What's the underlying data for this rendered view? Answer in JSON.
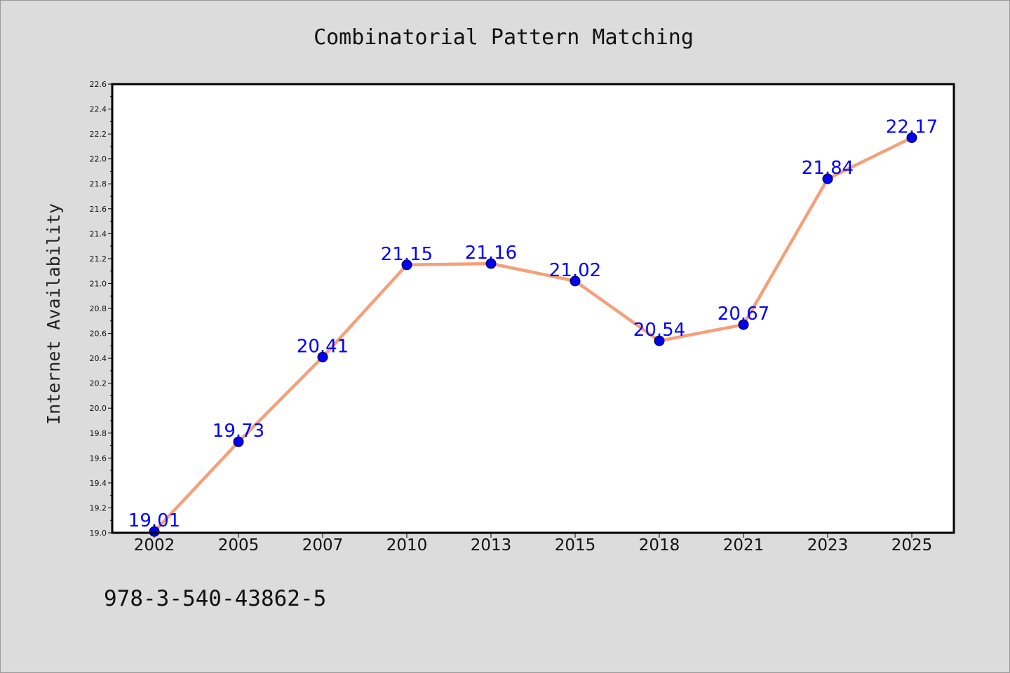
{
  "chart_data": {
    "type": "line",
    "title": "Combinatorial Pattern Matching",
    "xlabel": "",
    "ylabel": "Internet Availability",
    "categories": [
      "2002",
      "2005",
      "2007",
      "2010",
      "2013",
      "2015",
      "2018",
      "2021",
      "2023",
      "2025"
    ],
    "series": [
      {
        "values": [
          19.01,
          19.73,
          20.41,
          21.15,
          21.16,
          21.02,
          20.54,
          20.67,
          21.84,
          22.17
        ],
        "data_labels": [
          "19.01",
          "19.73",
          "20.41",
          "21.15",
          "21.16",
          "21.02",
          "20.54",
          "20.67",
          "21.84",
          "22.17"
        ]
      }
    ],
    "ylim": [
      19.0,
      22.6
    ],
    "yticks": [
      "19.0",
      "19.2",
      "19.4",
      "19.6",
      "19.8",
      "20.0",
      "20.2",
      "20.4",
      "20.6",
      "20.8",
      "21.0",
      "21.2",
      "21.4",
      "21.6",
      "21.8",
      "22.0",
      "22.2",
      "22.4",
      "22.6"
    ],
    "grid": false,
    "legend": "none",
    "colors": {
      "line": "#f4a07a",
      "marker": "#0000ee",
      "data_label": "#0000ff",
      "plot_bg": "#ffffff",
      "page_bg": "#dcdcdc"
    }
  },
  "footer": {
    "text": "978-3-540-43862-5"
  }
}
